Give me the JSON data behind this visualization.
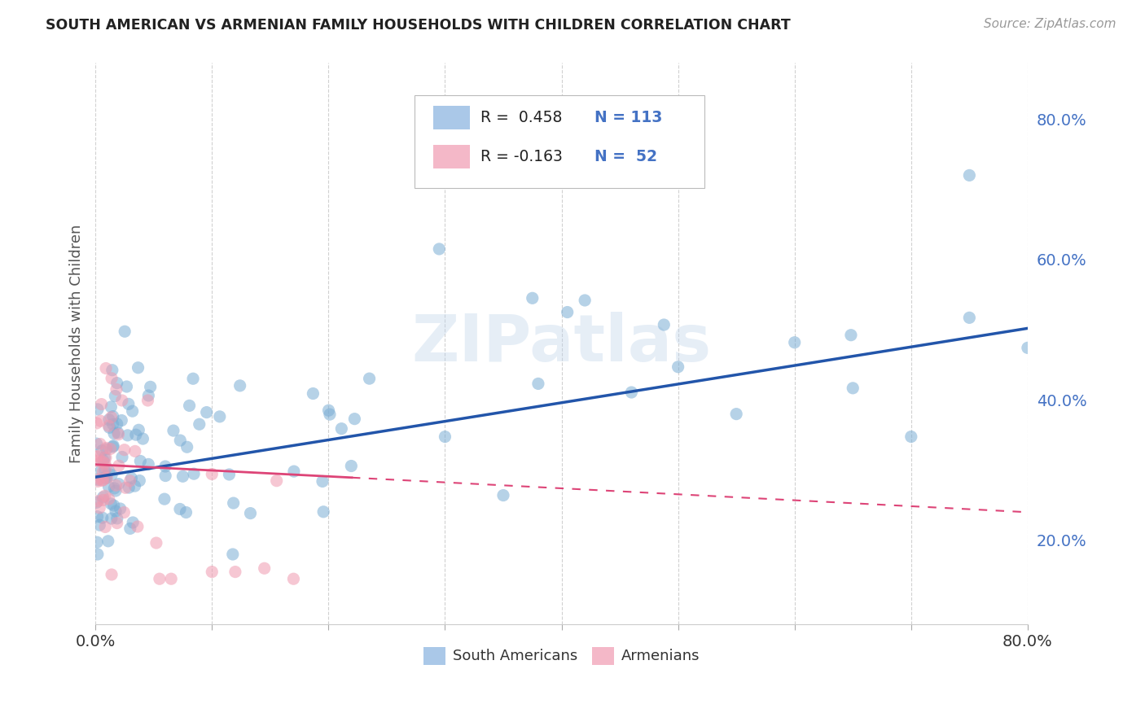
{
  "title": "SOUTH AMERICAN VS ARMENIAN FAMILY HOUSEHOLDS WITH CHILDREN CORRELATION CHART",
  "source": "Source: ZipAtlas.com",
  "ylabel": "Family Households with Children",
  "xlim": [
    0.0,
    0.8
  ],
  "ylim": [
    0.08,
    0.88
  ],
  "yticks": [
    0.2,
    0.4,
    0.6,
    0.8
  ],
  "xticks": [
    0.0,
    0.1,
    0.2,
    0.3,
    0.4,
    0.5,
    0.6,
    0.7,
    0.8
  ],
  "bg_color": "#ffffff",
  "grid_color": "#cccccc",
  "title_color": "#222222",
  "source_color": "#999999",
  "blue_color": "#7aadd4",
  "pink_color": "#f09ab0",
  "trend_blue": "#2255aa",
  "trend_pink": "#dd4477",
  "blue_alpha": 0.55,
  "pink_alpha": 0.55,
  "marker_size": 120,
  "legend_R_blue": "R =  0.458",
  "legend_N_blue": "N = 113",
  "legend_R_pink": "R = -0.163",
  "legend_N_pink": "N =  52",
  "legend_blue_patch": "#aac8e8",
  "legend_pink_patch": "#f4b8c8",
  "watermark": "ZIPatlas",
  "watermark_color": "#b8d0e8",
  "watermark_alpha": 0.35,
  "right_tick_color": "#4472c4",
  "bottom_tick_color": "#333333",
  "ylabel_color": "#555555"
}
